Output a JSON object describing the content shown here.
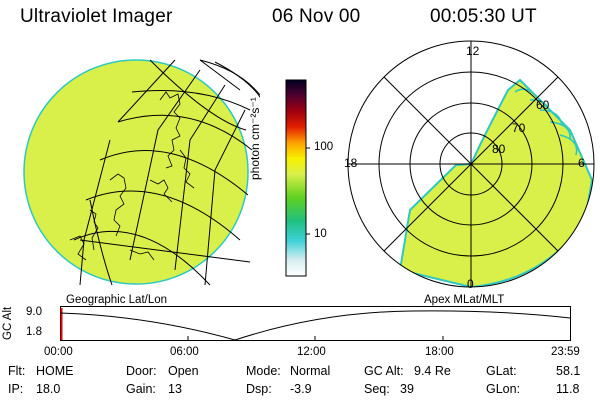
{
  "header": {
    "instrument": "Ultraviolet Imager",
    "date": "06 Nov 00",
    "time": "00:05:30 UT"
  },
  "colorbar": {
    "label": "photon cm⁻²s⁻¹",
    "ticks": [
      "100",
      "10"
    ],
    "scale": "log"
  },
  "geo_panel": {
    "caption": "Geographic Lat/Lon"
  },
  "polar_panel": {
    "caption": "Apex MLat/MLT",
    "mlt_labels": [
      "12",
      "18",
      "6",
      "0"
    ],
    "lat_labels": [
      "60",
      "70",
      "80"
    ]
  },
  "gc_plot": {
    "ylabel": "GC Alt",
    "yticks": [
      "9.0",
      "1.8"
    ],
    "xticks": [
      "00:00",
      "06:00",
      "12:00",
      "18:00",
      "23:59"
    ],
    "marker_time": "00:05"
  },
  "info": {
    "flt_label": "Flt:",
    "flt_value": "HOME",
    "ip_label": "IP:",
    "ip_value": "18.0",
    "door_label": "Door:",
    "door_value": "Open",
    "gain_label": "Gain:",
    "gain_value": "13",
    "mode_label": "Mode:",
    "mode_value": "Normal",
    "dsp_label": "Dsp:",
    "dsp_value": "-3.9",
    "gcalt_label": "GC Alt:",
    "gcalt_value": "9.4 Re",
    "seq_label": "Seq:",
    "seq_value": "39",
    "glat_label": "GLat:",
    "glat_value": "58.1",
    "glon_label": "GLon:",
    "glon_value": "11.8"
  },
  "colors": {
    "image_fill": "#d9f04a",
    "image_edge": "#2fc8c0",
    "marker": "#e00000"
  }
}
